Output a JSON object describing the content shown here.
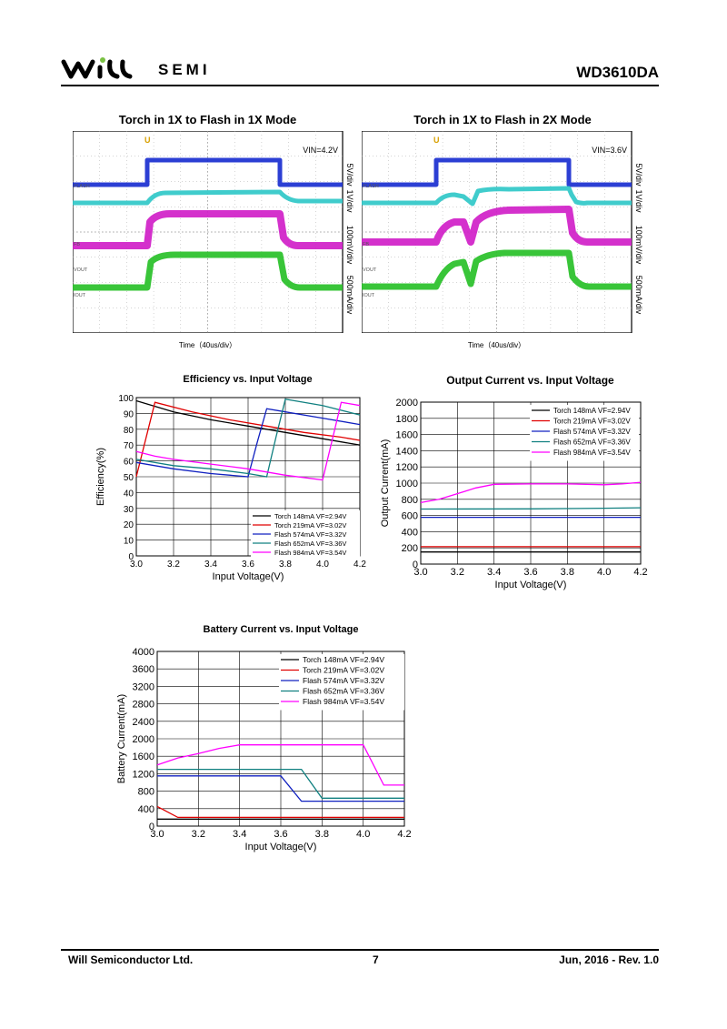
{
  "header": {
    "logo_text": "SEMI",
    "doc_id": "WD3610DA"
  },
  "footer": {
    "company": "Will Semiconductor Ltd.",
    "page": "7",
    "date_rev": "Jun, 2016 - Rev. 1.0"
  },
  "scopes": [
    {
      "title": "Torch in 1X to Flash in 1X Mode",
      "vin": "VIN=4.2V",
      "time_label": "Time（40us/div）",
      "channel_labels": [
        "FLASH",
        "FB",
        "VOUT",
        "IOUT"
      ],
      "scale_labels": [
        "5V/div",
        "1V/div",
        "100mV/div",
        "500mA/div"
      ]
    },
    {
      "title": "Torch in 1X to Flash in 2X Mode",
      "vin": "VIN=3.6V",
      "time_label": "Time（40us/div）",
      "channel_labels": [
        "FLASH",
        "FB",
        "VOUT",
        "IOUT"
      ],
      "scale_labels": [
        "5V/div",
        "1V/div",
        "100mV/div",
        "500mA/div"
      ]
    }
  ],
  "chart_data": [
    {
      "type": "line",
      "title": "Efficiency vs. Input Voltage",
      "xlabel": "Input Voltage(V)",
      "ylabel": "Efficiency(%)",
      "xlim": [
        3.0,
        4.2
      ],
      "ylim": [
        0,
        100
      ],
      "xticks": [
        "3.0",
        "3.2",
        "3.4",
        "3.6",
        "3.8",
        "4.0",
        "4.2"
      ],
      "yticks": [
        "0",
        "10",
        "20",
        "30",
        "40",
        "50",
        "60",
        "70",
        "80",
        "90",
        "100"
      ],
      "legend_position": "bottom-right",
      "grid": true,
      "series": [
        {
          "name": "Torch 148mA VF=2.94V",
          "color": "#000000",
          "x": [
            3.0,
            3.2,
            3.4,
            3.6,
            3.8,
            4.0,
            4.2
          ],
          "y": [
            98,
            91,
            86,
            82,
            78,
            74,
            70
          ]
        },
        {
          "name": "Torch 219mA VF=3.02V",
          "color": "#e00000",
          "x": [
            3.0,
            3.1,
            3.3,
            3.5,
            3.7,
            3.9,
            4.1,
            4.2
          ],
          "y": [
            50,
            97,
            91,
            86,
            82,
            78,
            75,
            73
          ]
        },
        {
          "name": "Flash 574mA VF=3.32V",
          "color": "#1020c0",
          "x": [
            3.0,
            3.2,
            3.4,
            3.6,
            3.65,
            3.7,
            3.8,
            4.0,
            4.2
          ],
          "y": [
            59,
            55,
            52,
            50,
            72,
            93,
            91,
            87,
            83
          ]
        },
        {
          "name": "Flash 652mA VF=3.36V",
          "color": "#108080",
          "x": [
            3.0,
            3.2,
            3.4,
            3.6,
            3.7,
            3.75,
            3.8,
            4.0,
            4.2
          ],
          "y": [
            61,
            57,
            55,
            52,
            50,
            75,
            99,
            95,
            89
          ]
        },
        {
          "name": "Flash 984mA VF=3.54V",
          "color": "#ff00ff",
          "x": [
            3.0,
            3.1,
            3.2,
            3.4,
            3.6,
            3.8,
            4.0,
            4.1,
            4.2
          ],
          "y": [
            66,
            63,
            61,
            58,
            55,
            51,
            48,
            97,
            95
          ]
        }
      ]
    },
    {
      "type": "line",
      "title": "Output Current vs. Input Voltage",
      "xlabel": "Input Voltage(V)",
      "ylabel": "Output Current(mA)",
      "xlim": [
        3.0,
        4.2
      ],
      "ylim": [
        0,
        2000
      ],
      "xticks": [
        "3.0",
        "3.2",
        "3.4",
        "3.6",
        "3.8",
        "4.0",
        "4.2"
      ],
      "yticks": [
        "0",
        "200",
        "400",
        "600",
        "800",
        "1000",
        "1200",
        "1400",
        "1600",
        "1800",
        "2000"
      ],
      "legend_position": "top-right",
      "grid": true,
      "series": [
        {
          "name": "Torch 148mA VF=2.94V",
          "color": "#000000",
          "x": [
            3.0,
            4.2
          ],
          "y": [
            150,
            150
          ]
        },
        {
          "name": "Torch 219mA VF=3.02V",
          "color": "#e00000",
          "x": [
            3.0,
            4.2
          ],
          "y": [
            215,
            215
          ]
        },
        {
          "name": "Flash 574mA VF=3.32V",
          "color": "#1020c0",
          "x": [
            3.0,
            4.2
          ],
          "y": [
            578,
            578
          ]
        },
        {
          "name": "Flash 652mA VF=3.36V",
          "color": "#108080",
          "x": [
            3.0,
            3.6,
            4.0,
            4.2
          ],
          "y": [
            680,
            682,
            690,
            695
          ]
        },
        {
          "name": "Flash 984mA VF=3.54V",
          "color": "#ff00ff",
          "x": [
            3.0,
            3.1,
            3.2,
            3.3,
            3.4,
            3.6,
            3.8,
            4.0,
            4.1,
            4.2
          ],
          "y": [
            760,
            800,
            870,
            940,
            985,
            990,
            990,
            980,
            990,
            1010
          ]
        }
      ]
    },
    {
      "type": "line",
      "title": "Battery Current vs. Input Voltage",
      "xlabel": "Input Voltage(V)",
      "ylabel": "Battery Current(mA)",
      "xlim": [
        3.0,
        4.2
      ],
      "ylim": [
        0,
        4000
      ],
      "xticks": [
        "3.0",
        "3.2",
        "3.4",
        "3.6",
        "3.8",
        "4.0",
        "4.2"
      ],
      "yticks": [
        "0",
        "400",
        "800",
        "1200",
        "1600",
        "2000",
        "2400",
        "2800",
        "3200",
        "3600",
        "4000"
      ],
      "legend_position": "top-right",
      "grid": true,
      "series": [
        {
          "name": "Torch 148mA VF=2.94V",
          "color": "#000000",
          "x": [
            3.0,
            4.2
          ],
          "y": [
            160,
            160
          ]
        },
        {
          "name": "Torch 219mA VF=3.02V",
          "color": "#e00000",
          "x": [
            3.0,
            3.1,
            4.2
          ],
          "y": [
            450,
            200,
            200
          ]
        },
        {
          "name": "Flash 574mA VF=3.32V",
          "color": "#1020c0",
          "x": [
            3.0,
            3.6,
            3.7,
            4.2
          ],
          "y": [
            1150,
            1150,
            570,
            570
          ]
        },
        {
          "name": "Flash 652mA VF=3.36V",
          "color": "#108080",
          "x": [
            3.0,
            3.7,
            3.8,
            4.2
          ],
          "y": [
            1300,
            1300,
            640,
            640
          ]
        },
        {
          "name": "Flash 984mA VF=3.54V",
          "color": "#ff00ff",
          "x": [
            3.0,
            3.1,
            3.2,
            3.3,
            3.4,
            3.6,
            3.8,
            4.0,
            4.1,
            4.2
          ],
          "y": [
            1400,
            1560,
            1660,
            1780,
            1860,
            1860,
            1860,
            1860,
            940,
            940
          ]
        }
      ]
    }
  ]
}
